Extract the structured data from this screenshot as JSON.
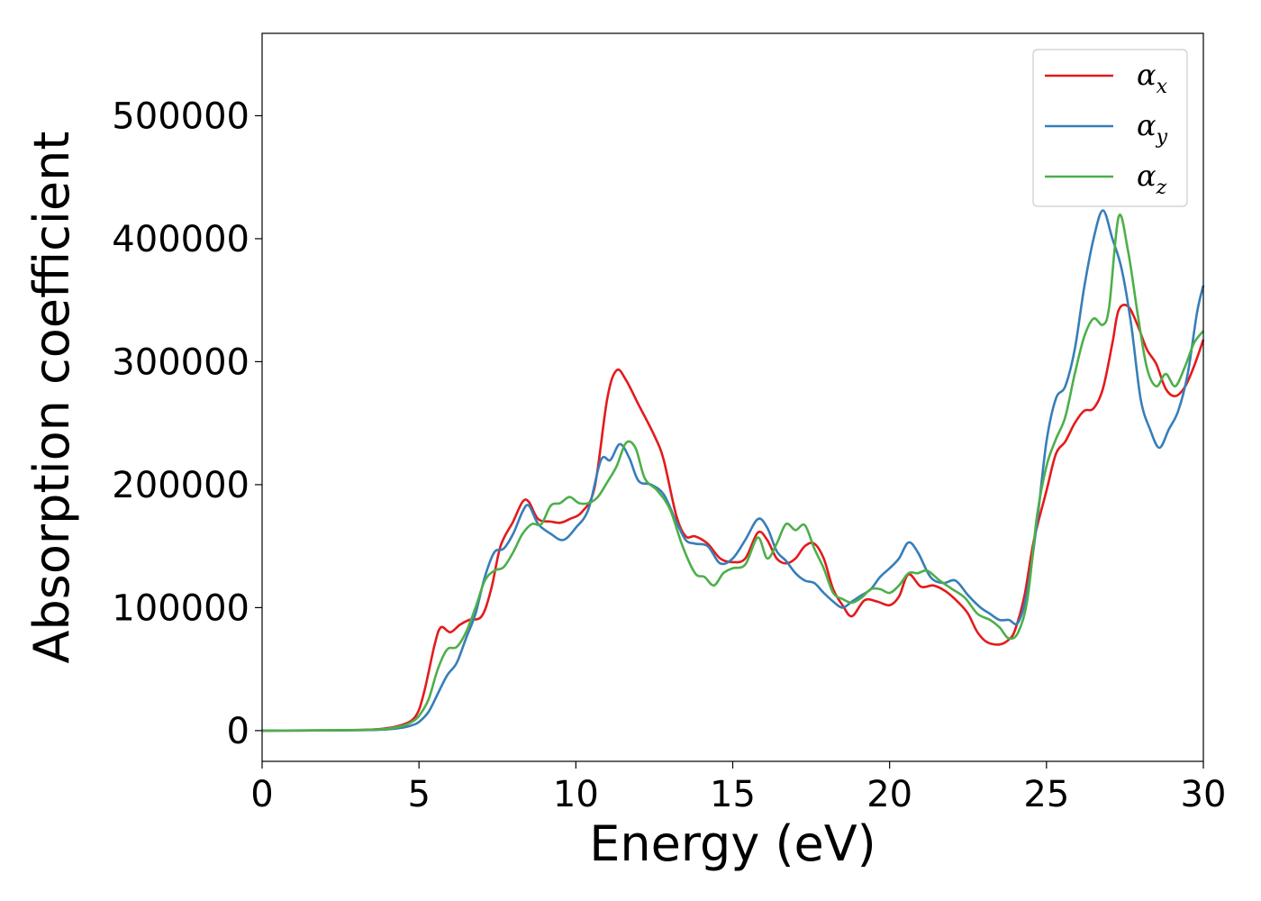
{
  "chart_data": {
    "type": "line",
    "xlabel": "Energy (eV)",
    "ylabel": "Absorption coefficient",
    "xlim": [
      0,
      30
    ],
    "ylim": [
      -25000,
      567000
    ],
    "xticks": [
      0,
      5,
      10,
      15,
      20,
      25,
      30
    ],
    "yticks": [
      0,
      100000,
      200000,
      300000,
      400000,
      500000
    ],
    "grid": false,
    "legend_position": "top-right",
    "series": [
      {
        "name": "α_x",
        "name_main": "α",
        "name_sub": "x",
        "color": "#e41a1c",
        "x": [
          0,
          3,
          4,
          4.5,
          4.8,
          5,
          5.2,
          5.5,
          5.7,
          6,
          6.3,
          6.6,
          7,
          7.3,
          7.6,
          8,
          8.3,
          8.5,
          8.8,
          9.2,
          9.5,
          9.8,
          10.2,
          10.6,
          11,
          11.3,
          11.6,
          12,
          12.5,
          12.8,
          13.2,
          13.5,
          13.8,
          14.2,
          14.6,
          15,
          15.4,
          15.8,
          16.1,
          16.4,
          16.7,
          17,
          17.3,
          17.6,
          17.9,
          18.2,
          18.5,
          18.8,
          19.2,
          19.6,
          20,
          20.3,
          20.6,
          21,
          21.4,
          21.8,
          22.2,
          22.5,
          22.8,
          23.1,
          23.5,
          23.8,
          24,
          24.3,
          24.6,
          25,
          25.3,
          25.6,
          25.9,
          26.2,
          26.5,
          26.8,
          27.1,
          27.3,
          27.6,
          27.9,
          28.2,
          28.5,
          28.8,
          29.1,
          29.4,
          29.7,
          30
        ],
        "y": [
          0,
          500,
          2000,
          5000,
          9000,
          17000,
          35000,
          70000,
          84000,
          80000,
          86000,
          90000,
          93000,
          115000,
          150000,
          170000,
          186000,
          186000,
          172000,
          170000,
          169000,
          172000,
          178000,
          198000,
          270000,
          293000,
          285000,
          265000,
          240000,
          220000,
          175000,
          158000,
          158000,
          152000,
          140000,
          137000,
          140000,
          161000,
          155000,
          140000,
          136000,
          140000,
          150000,
          152000,
          140000,
          115000,
          102000,
          93000,
          106000,
          105000,
          102000,
          109000,
          127000,
          117000,
          118000,
          113000,
          104000,
          95000,
          80000,
          72000,
          70000,
          74000,
          82000,
          110000,
          155000,
          195000,
          225000,
          235000,
          250000,
          260000,
          262000,
          278000,
          315000,
          342000,
          345000,
          330000,
          310000,
          298000,
          278000,
          272000,
          279000,
          296000,
          318000
        ]
      },
      {
        "name": "α_y",
        "name_main": "α",
        "name_sub": "y",
        "color": "#377eb8",
        "x": [
          0,
          3,
          4,
          4.5,
          4.8,
          5,
          5.3,
          5.6,
          5.9,
          6.2,
          6.5,
          6.8,
          7.1,
          7.4,
          7.7,
          8,
          8.3,
          8.5,
          8.8,
          9.2,
          9.6,
          10,
          10.4,
          10.8,
          11.1,
          11.4,
          11.7,
          12,
          12.4,
          12.8,
          13.2,
          13.5,
          13.8,
          14.2,
          14.6,
          15,
          15.4,
          15.8,
          16.1,
          16.4,
          16.7,
          17,
          17.3,
          17.6,
          17.9,
          18.2,
          18.5,
          18.8,
          19.1,
          19.4,
          19.7,
          20,
          20.3,
          20.6,
          20.9,
          21.3,
          21.7,
          22.1,
          22.5,
          22.9,
          23.2,
          23.5,
          23.8,
          24.1,
          24.4,
          24.7,
          25,
          25.3,
          25.6,
          25.9,
          26.2,
          26.5,
          26.8,
          27.1,
          27.4,
          27.7,
          28,
          28.3,
          28.6,
          28.9,
          29.2,
          29.5,
          29.8,
          30
        ],
        "y": [
          0,
          300,
          1000,
          2500,
          4500,
          7000,
          15000,
          30000,
          45000,
          55000,
          75000,
          95000,
          125000,
          145000,
          148000,
          160000,
          178000,
          183000,
          168000,
          160000,
          155000,
          165000,
          180000,
          220000,
          220000,
          233000,
          222000,
          203000,
          200000,
          192000,
          170000,
          155000,
          152000,
          150000,
          136000,
          140000,
          155000,
          172000,
          165000,
          146000,
          138000,
          128000,
          122000,
          120000,
          112000,
          105000,
          100000,
          105000,
          110000,
          115000,
          125000,
          132000,
          140000,
          153000,
          145000,
          125000,
          120000,
          122000,
          110000,
          100000,
          95000,
          90000,
          90000,
          88000,
          115000,
          170000,
          235000,
          270000,
          280000,
          310000,
          360000,
          400000,
          423000,
          400000,
          375000,
          330000,
          270000,
          245000,
          230000,
          245000,
          260000,
          290000,
          340000,
          362000
        ]
      },
      {
        "name": "α_z",
        "name_main": "α",
        "name_sub": "z",
        "color": "#4daf4a",
        "x": [
          0,
          3,
          4,
          4.5,
          4.8,
          5,
          5.3,
          5.6,
          5.9,
          6.2,
          6.5,
          6.8,
          7.1,
          7.4,
          7.7,
          8,
          8.3,
          8.6,
          8.9,
          9.2,
          9.5,
          9.8,
          10.1,
          10.4,
          10.7,
          11,
          11.3,
          11.6,
          11.9,
          12.2,
          12.6,
          13,
          13.4,
          13.8,
          14.1,
          14.4,
          14.7,
          15,
          15.4,
          15.8,
          16.1,
          16.4,
          16.7,
          17,
          17.3,
          17.6,
          17.9,
          18.2,
          18.5,
          18.8,
          19.1,
          19.4,
          19.7,
          20,
          20.3,
          20.6,
          20.9,
          21.2,
          21.6,
          22,
          22.4,
          22.8,
          23.2,
          23.5,
          23.8,
          24.1,
          24.4,
          24.7,
          25,
          25.3,
          25.6,
          25.9,
          26.2,
          26.5,
          26.8,
          27,
          27.3,
          27.6,
          27.9,
          28.2,
          28.5,
          28.8,
          29.1,
          29.4,
          29.7,
          30
        ],
        "y": [
          0,
          400,
          1500,
          4000,
          7500,
          12000,
          25000,
          50000,
          66000,
          68000,
          80000,
          100000,
          122000,
          130000,
          133000,
          145000,
          160000,
          168000,
          168000,
          183000,
          185000,
          190000,
          185000,
          185000,
          190000,
          202000,
          215000,
          234000,
          230000,
          205000,
          195000,
          180000,
          150000,
          128000,
          125000,
          118000,
          128000,
          132000,
          135000,
          157000,
          140000,
          152000,
          168000,
          163000,
          167000,
          148000,
          132000,
          112000,
          107000,
          104000,
          108000,
          115000,
          115000,
          112000,
          118000,
          128000,
          128000,
          130000,
          122000,
          115000,
          108000,
          95000,
          90000,
          84000,
          75000,
          80000,
          108000,
          175000,
          215000,
          237000,
          255000,
          290000,
          320000,
          335000,
          330000,
          345000,
          418000,
          390000,
          340000,
          295000,
          280000,
          290000,
          280000,
          295000,
          315000,
          325000
        ]
      }
    ]
  }
}
